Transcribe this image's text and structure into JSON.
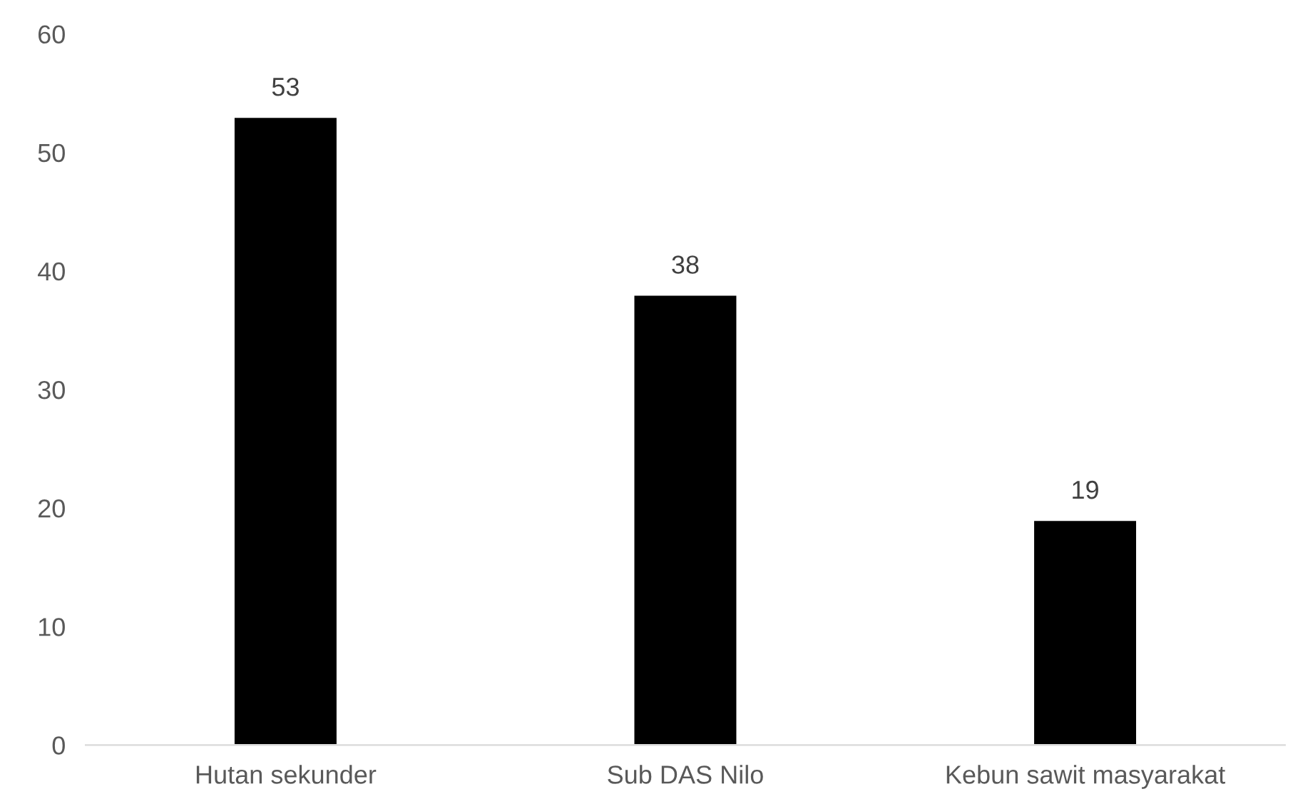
{
  "chart_data": {
    "type": "bar",
    "categories": [
      "Hutan sekunder",
      "Sub DAS Nilo",
      "Kebun sawit masyarakat"
    ],
    "values": [
      53,
      38,
      19
    ],
    "color": "#000000",
    "ylim": [
      0,
      60
    ],
    "yticks": [
      0,
      10,
      20,
      30,
      40,
      50,
      60
    ],
    "grid": false,
    "data_labels": true
  }
}
